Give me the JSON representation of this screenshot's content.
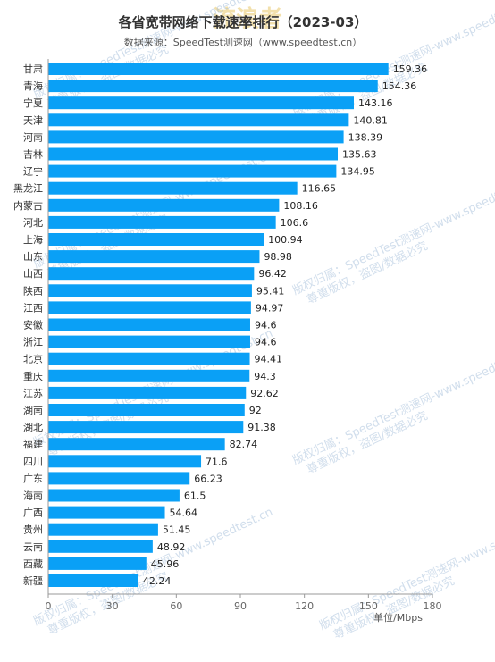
{
  "colors": {
    "bar": "#0aa0f6",
    "axis": "#999999"
  },
  "watermark": {
    "logo": "流浪者",
    "line1": "版权归属：SpeedTest测速网-www.speedtest.cn",
    "line2": "尊重版权，盗图/数据必究"
  },
  "chart_data": {
    "type": "bar",
    "orientation": "horizontal",
    "title": "各省宽带网络下载速率排行（2023-03）",
    "subtitle": "数据来源：SpeedTest测速网（www.speedtest.cn）",
    "xlabel": "单位/Mbps",
    "ylabel": "",
    "xlim": [
      0,
      180
    ],
    "xticks": [
      0,
      30,
      60,
      90,
      120,
      150,
      180
    ],
    "grid": false,
    "categories": [
      "甘肃",
      "青海",
      "宁夏",
      "天津",
      "河南",
      "吉林",
      "辽宁",
      "黑龙江",
      "内蒙古",
      "河北",
      "上海",
      "山东",
      "山西",
      "陕西",
      "江西",
      "安徽",
      "浙江",
      "北京",
      "重庆",
      "江苏",
      "湖南",
      "湖北",
      "福建",
      "四川",
      "广东",
      "海南",
      "广西",
      "贵州",
      "云南",
      "西藏",
      "新疆"
    ],
    "values": [
      159.36,
      154.36,
      143.16,
      140.81,
      138.39,
      135.63,
      134.95,
      116.65,
      108.16,
      106.6,
      100.94,
      98.98,
      96.42,
      95.41,
      94.97,
      94.6,
      94.6,
      94.41,
      94.3,
      92.62,
      92,
      91.38,
      82.74,
      71.6,
      66.23,
      61.5,
      54.64,
      51.45,
      48.92,
      45.96,
      42.24
    ]
  }
}
